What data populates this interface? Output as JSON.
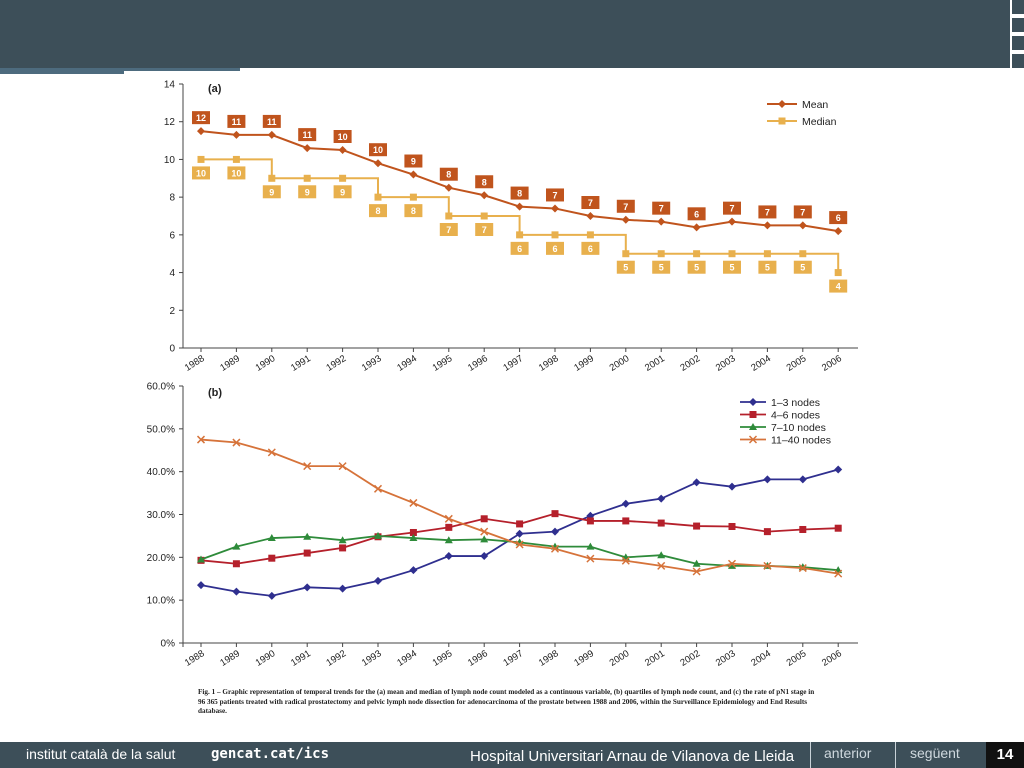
{
  "colors": {
    "header": "#3d4f59",
    "mean": "#c0541d",
    "median": "#e8b04d",
    "nodes_1_3": "#2f2f8f",
    "nodes_4_6": "#b5202b",
    "nodes_7_10": "#2e8b3a",
    "nodes_11_40": "#d6733a"
  },
  "footer": {
    "institute": "institut català de la salut",
    "site": "gencat.cat/ics",
    "hospital": "Hospital Universitari Arnau de Vilanova de Lleida",
    "prev": "anterior",
    "next": "següent",
    "page": "14"
  },
  "caption": "Fig. 1 – Graphic representation of temporal trends for the (a) mean and median of lymph node count modeled as a continuous variable, (b) quartiles of lymph node count, and (c) the rate of pN1 stage in 96 365 patients treated with radical prostatectomy and pelvic lymph node dissection for adenocarcinoma of the prostate between 1988 and 2006, within the Surveillance Epidemiology and End Results database.",
  "chart_data": [
    {
      "type": "line",
      "panel_label": "(a)",
      "x": [
        "1988",
        "1989",
        "1990",
        "1991",
        "1992",
        "1993",
        "1994",
        "1995",
        "1996",
        "1997",
        "1998",
        "1999",
        "2000",
        "2001",
        "2002",
        "2003",
        "2004",
        "2005",
        "2006"
      ],
      "ylim": [
        0,
        14
      ],
      "yticks": [
        "0",
        "2",
        "4",
        "6",
        "8",
        "10",
        "12",
        "14"
      ],
      "legend_position": "top-right",
      "series": [
        {
          "name": "Mean",
          "marker": "diamond",
          "values": [
            11.5,
            11.3,
            11.3,
            10.6,
            10.5,
            9.8,
            9.2,
            8.5,
            8.1,
            7.5,
            7.4,
            7.0,
            6.8,
            6.7,
            6.4,
            6.7,
            6.5,
            6.5,
            6.2
          ],
          "labels": [
            "12",
            "11",
            "11",
            "11",
            "10",
            "10",
            "9",
            "8",
            "8",
            "8",
            "7",
            "7",
            "7",
            "7",
            "6",
            "7",
            "7",
            "7",
            "6"
          ]
        },
        {
          "name": "Median",
          "marker": "square",
          "values": [
            10,
            10,
            9,
            9,
            9,
            8,
            8,
            7,
            7,
            6,
            6,
            6,
            5,
            5,
            5,
            5,
            5,
            5,
            4
          ],
          "labels": [
            "10",
            "10",
            "9",
            "9",
            "9",
            "8",
            "8",
            "7",
            "7",
            "6",
            "6",
            "6",
            "5",
            "5",
            "5",
            "5",
            "5",
            "5",
            "4"
          ]
        }
      ]
    },
    {
      "type": "line",
      "panel_label": "(b)",
      "x": [
        "1988",
        "1989",
        "1990",
        "1991",
        "1992",
        "1993",
        "1994",
        "1995",
        "1996",
        "1997",
        "1998",
        "1999",
        "2000",
        "2001",
        "2002",
        "2003",
        "2004",
        "2005",
        "2006"
      ],
      "ylim": [
        0,
        60
      ],
      "yticks": [
        "0%",
        "10.0%",
        "20.0%",
        "30.0%",
        "40.0%",
        "50.0%",
        "60.0%"
      ],
      "legend_position": "top-right",
      "series": [
        {
          "name": "1–3 nodes",
          "marker": "diamond",
          "values": [
            13.5,
            12.0,
            11.0,
            13.0,
            12.7,
            14.5,
            17.0,
            20.3,
            20.3,
            25.5,
            26.0,
            29.7,
            32.5,
            33.7,
            37.5,
            36.5,
            38.2,
            38.2,
            40.5
          ]
        },
        {
          "name": "4–6 nodes",
          "marker": "square",
          "values": [
            19.3,
            18.5,
            19.8,
            21.0,
            22.2,
            24.8,
            25.8,
            27.0,
            29.0,
            27.8,
            30.2,
            28.5,
            28.5,
            28.0,
            27.3,
            27.2,
            26.0,
            26.5,
            26.8
          ]
        },
        {
          "name": "7–10 nodes",
          "marker": "triangle",
          "values": [
            19.5,
            22.5,
            24.5,
            24.8,
            24.0,
            25.0,
            24.5,
            24.0,
            24.2,
            23.5,
            22.5,
            22.5,
            20.0,
            20.5,
            18.5,
            18.0,
            18.0,
            17.7,
            17.0
          ]
        },
        {
          "name": "11–40 nodes",
          "marker": "x",
          "values": [
            47.5,
            46.8,
            44.5,
            41.3,
            41.3,
            36.0,
            32.7,
            29.0,
            26.0,
            23.0,
            22.0,
            19.7,
            19.2,
            18.0,
            16.7,
            18.5,
            18.0,
            17.5,
            16.2
          ]
        }
      ]
    }
  ]
}
